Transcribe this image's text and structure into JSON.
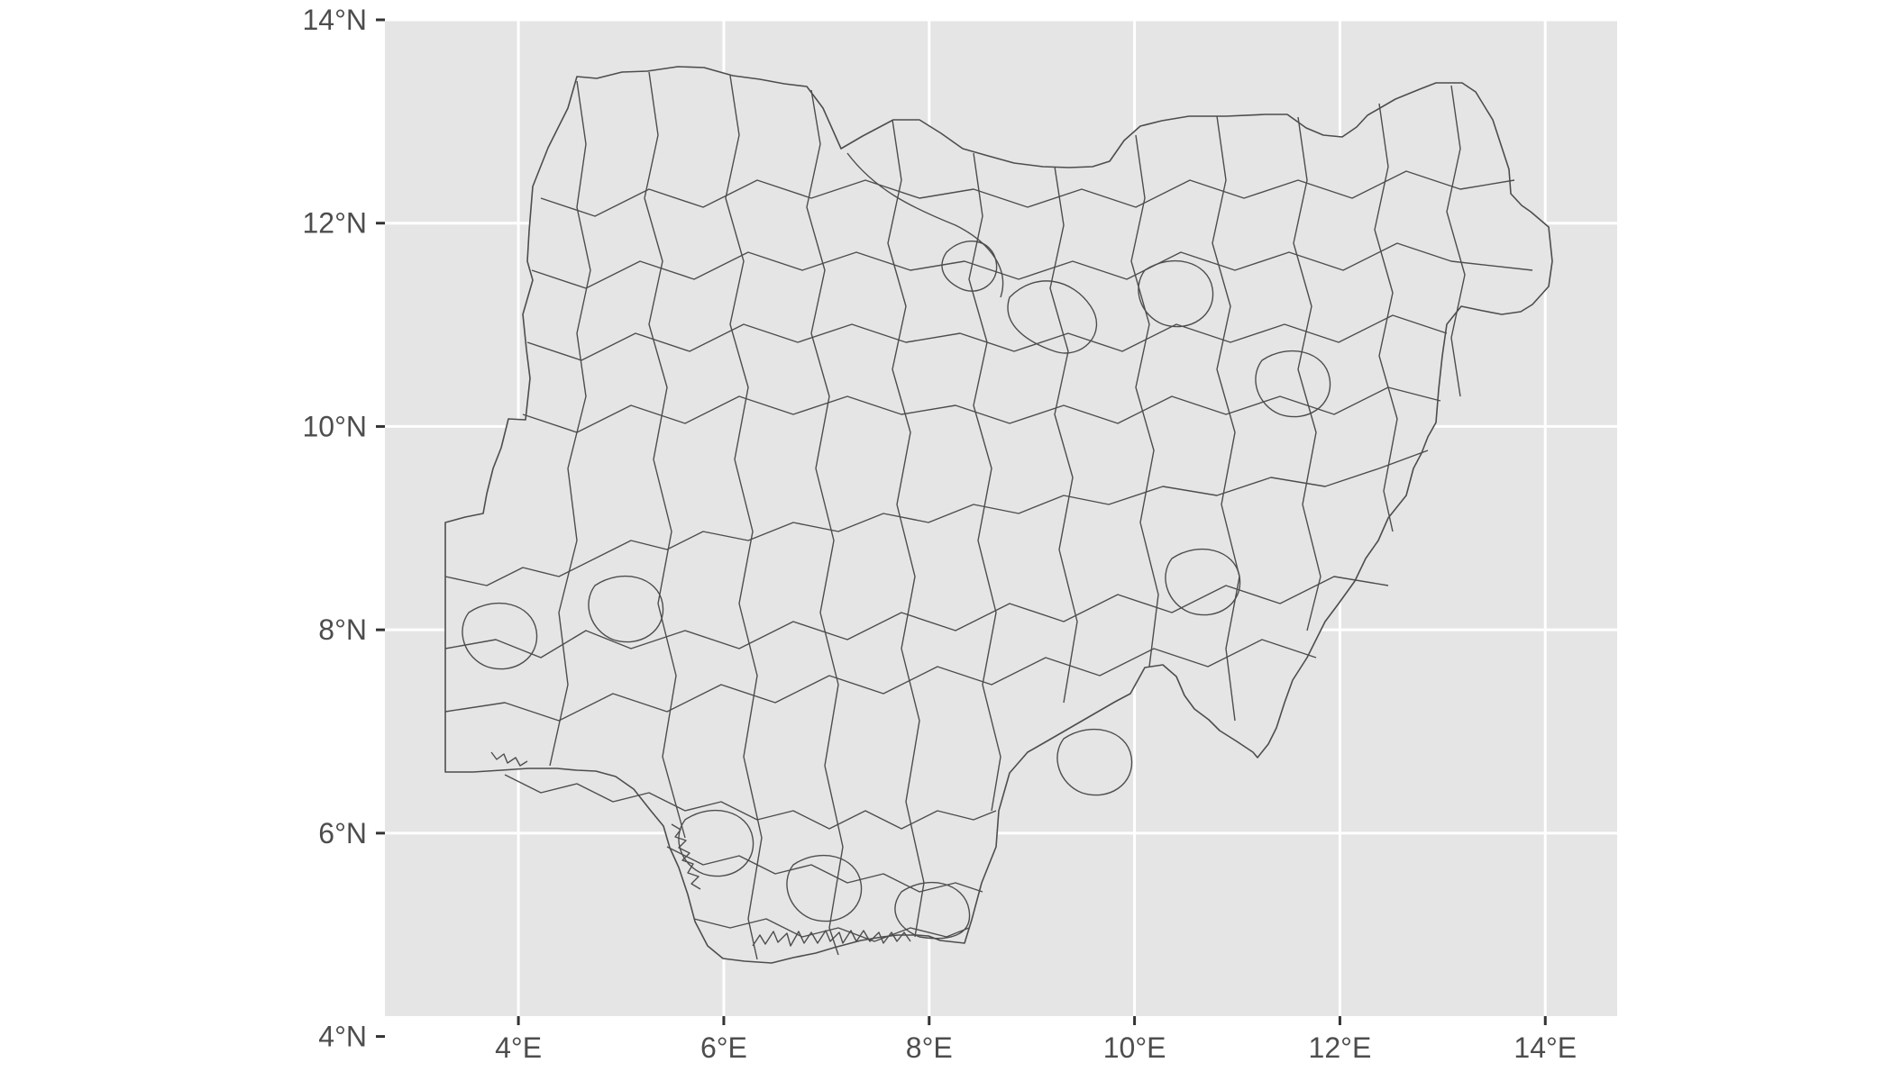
{
  "map": {
    "type": "map",
    "region": "Nigeria",
    "geometry": "choropleth outline of administrative boundaries (LGAs)",
    "panel_background": "#e5e5e5",
    "grid_color": "#ffffff",
    "boundary_stroke": "#4d4d4d",
    "fill": "#e5e5e5",
    "grid": true,
    "xlim": [
      2.7,
      14.7
    ],
    "ylim": [
      4.2,
      14.0
    ],
    "x_ticks": [
      {
        "value": 4,
        "label": "4°E"
      },
      {
        "value": 6,
        "label": "6°E"
      },
      {
        "value": 8,
        "label": "8°E"
      },
      {
        "value": 10,
        "label": "10°E"
      },
      {
        "value": 12,
        "label": "12°E"
      },
      {
        "value": 14,
        "label": "14°E"
      }
    ],
    "y_ticks": [
      {
        "value": 4,
        "label": "4°N"
      },
      {
        "value": 6,
        "label": "6°N"
      },
      {
        "value": 8,
        "label": "8°N"
      },
      {
        "value": 10,
        "label": "10°N"
      },
      {
        "value": 12,
        "label": "12°N"
      },
      {
        "value": 14,
        "label": "14°N"
      }
    ]
  }
}
